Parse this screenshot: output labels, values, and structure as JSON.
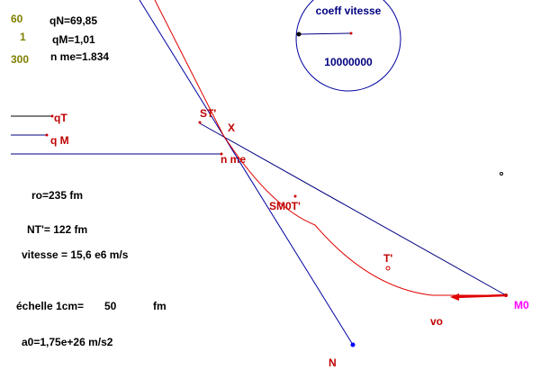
{
  "params": {
    "left": [
      "60",
      "1",
      "300"
    ],
    "right": [
      "qN=69,85",
      "qM=1,01",
      "n me=1.834"
    ]
  },
  "gauge": {
    "title": "coeff vitesse",
    "value": "10000000"
  },
  "sliders": [
    "qT",
    "q M",
    "n me"
  ],
  "labels": {
    "st": "ST'",
    "x": "X",
    "smot": "SM0T'",
    "t": "T'",
    "m0": "M0",
    "vo": "vo",
    "n": "N"
  },
  "info": {
    "ro": "ro=235 fm",
    "nt": "NT'= 122 fm",
    "vitesse": "vitesse = 15,6 e6 m/s",
    "echelle": "échelle 1cm=",
    "echelle_value": "50",
    "echelle_unit": "fm",
    "a0": "a0=1,75e+26 m/s2"
  }
}
